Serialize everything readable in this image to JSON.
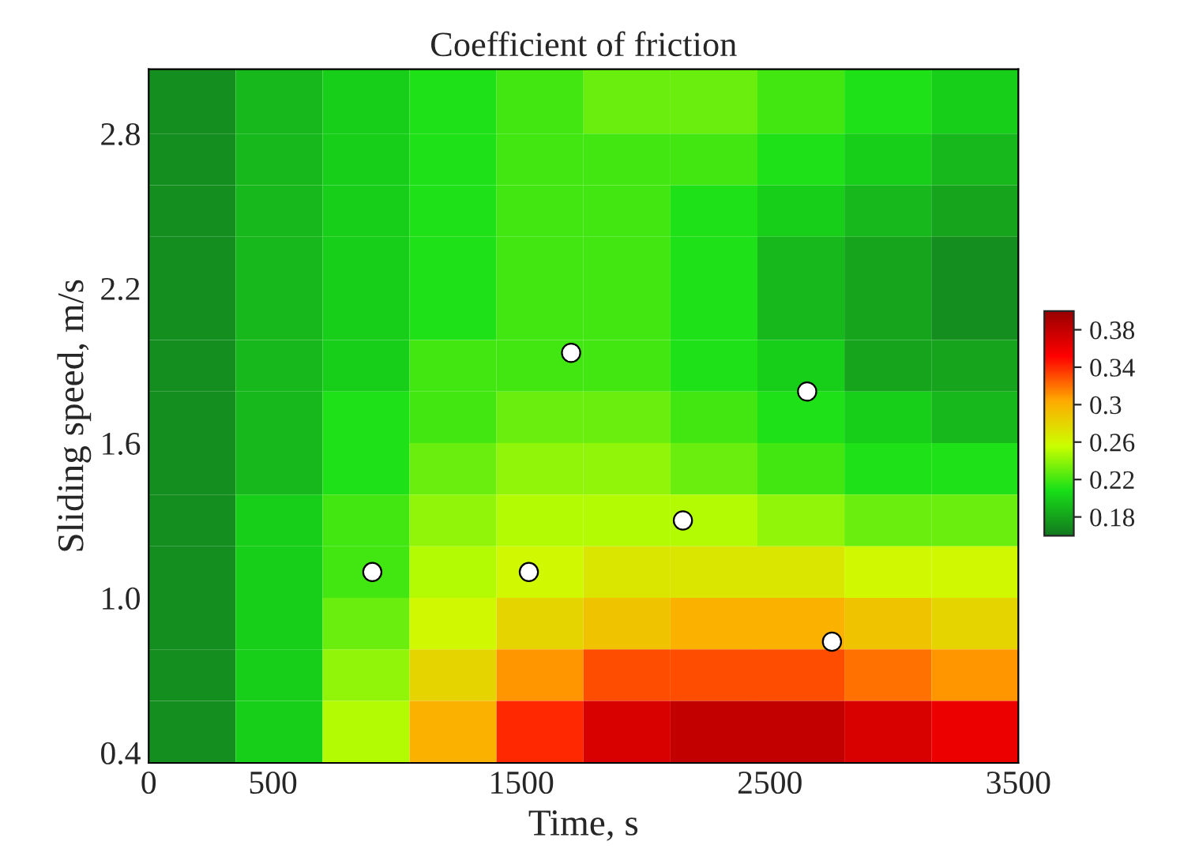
{
  "chart_data": {
    "type": "heatmap",
    "title": "Coefficient of friction",
    "xlabel": "Time, s",
    "ylabel": "Sliding speed, m/s",
    "x": [
      175,
      525,
      875,
      1225,
      1575,
      1925,
      2275,
      2625,
      2975,
      3325
    ],
    "y": [
      2.9,
      2.7,
      2.5,
      2.3,
      2.1,
      1.9,
      1.7,
      1.5,
      1.3,
      1.1,
      0.9,
      0.7,
      0.5
    ],
    "cells": [
      [
        0.17,
        0.19,
        0.2,
        0.21,
        0.22,
        0.23,
        0.23,
        0.22,
        0.21,
        0.2
      ],
      [
        0.17,
        0.19,
        0.2,
        0.21,
        0.22,
        0.22,
        0.22,
        0.21,
        0.2,
        0.19
      ],
      [
        0.17,
        0.19,
        0.2,
        0.21,
        0.22,
        0.22,
        0.21,
        0.2,
        0.19,
        0.18
      ],
      [
        0.17,
        0.19,
        0.2,
        0.21,
        0.22,
        0.22,
        0.21,
        0.19,
        0.18,
        0.17
      ],
      [
        0.17,
        0.19,
        0.2,
        0.21,
        0.22,
        0.22,
        0.21,
        0.19,
        0.18,
        0.17
      ],
      [
        0.17,
        0.19,
        0.2,
        0.22,
        0.22,
        0.22,
        0.21,
        0.2,
        0.18,
        0.18
      ],
      [
        0.17,
        0.19,
        0.21,
        0.22,
        0.23,
        0.23,
        0.22,
        0.21,
        0.2,
        0.19
      ],
      [
        0.17,
        0.19,
        0.21,
        0.23,
        0.24,
        0.24,
        0.23,
        0.22,
        0.21,
        0.21
      ],
      [
        0.17,
        0.2,
        0.22,
        0.24,
        0.25,
        0.25,
        0.25,
        0.24,
        0.23,
        0.23
      ],
      [
        0.17,
        0.2,
        0.22,
        0.25,
        0.26,
        0.27,
        0.27,
        0.27,
        0.26,
        0.26
      ],
      [
        0.17,
        0.2,
        0.23,
        0.26,
        0.28,
        0.29,
        0.3,
        0.3,
        0.29,
        0.28
      ],
      [
        0.17,
        0.2,
        0.24,
        0.28,
        0.31,
        0.33,
        0.33,
        0.33,
        0.32,
        0.31
      ],
      [
        0.17,
        0.2,
        0.25,
        0.3,
        0.34,
        0.37,
        0.38,
        0.38,
        0.37,
        0.36
      ]
    ],
    "colors": [
      "#137a1f",
      "#18e018",
      "#ccff00",
      "#ffaa00",
      "#ff0000",
      "#990000"
    ],
    "clim": [
      0.16,
      0.4
    ],
    "cticks": [
      0.38,
      0.34,
      0.3,
      0.26,
      0.22,
      0.18
    ],
    "series": [
      {
        "type": "scatter",
        "color": "#ffffff",
        "x": [
          900,
          1530,
          1700,
          2150,
          2650,
          2750
        ],
        "values": [
          1.1,
          1.1,
          1.95,
          1.3,
          1.8,
          0.83
        ]
      }
    ],
    "xlim": [
      0,
      3500
    ],
    "ylim": [
      0.36,
      3.05
    ],
    "xticks": [
      0,
      500,
      1500,
      2500,
      3500
    ],
    "yticks": [
      0.4,
      {
        "value": 1.0,
        "label": "1.0"
      },
      1.6,
      2.2,
      2.8
    ],
    "grid": false,
    "marker": "circle"
  }
}
